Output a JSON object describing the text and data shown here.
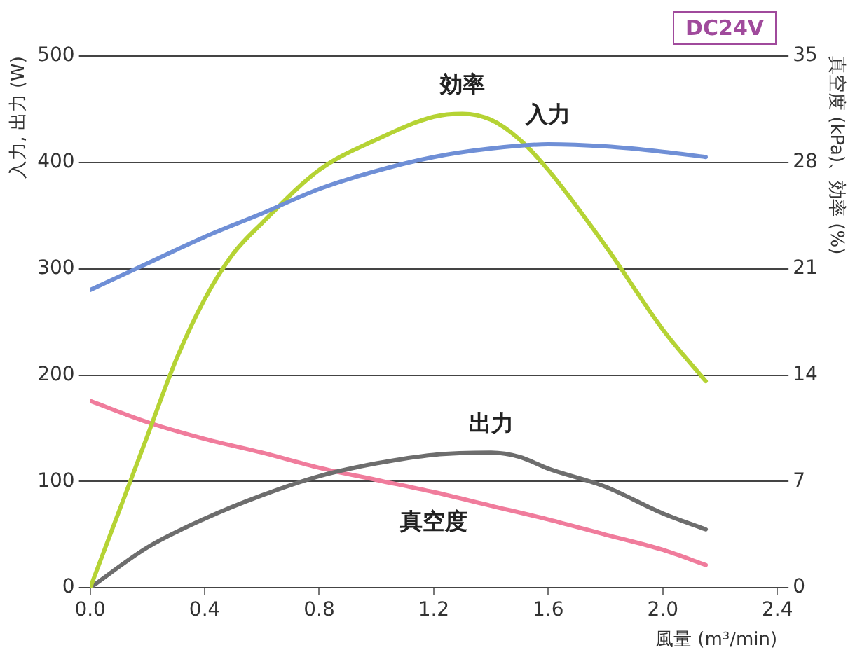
{
  "chart_data": {
    "type": "line",
    "xlabel": "風量 (m³/min)",
    "ylabel": "入力, 出力 (W)",
    "y2label": "真空度 (kPa)、効率 (%)",
    "x": [
      0,
      0.2,
      0.4,
      0.6,
      0.8,
      1.0,
      1.2,
      1.4,
      1.6,
      1.8,
      2.0,
      2.15
    ],
    "series": [
      {
        "name": "入力",
        "color": "#6f8fd6",
        "values": [
          280,
          305,
          330,
          352,
          375,
          392,
          405,
          413,
          417,
          415,
          410,
          405
        ]
      },
      {
        "name": "効率",
        "color": "#b5d334",
        "axis": "y2",
        "x": [
          0,
          0.1,
          0.2,
          0.3,
          0.4,
          0.5,
          0.6,
          0.8,
          1.0,
          1.2,
          1.3,
          1.4,
          1.5,
          1.6,
          1.8,
          2.0,
          2.15
        ],
        "values": [
          0,
          5,
          10,
          15,
          19,
          22,
          24,
          27.5,
          29.5,
          31,
          31.2,
          30.8,
          29.5,
          27.5,
          22.5,
          17,
          13.6
        ]
      },
      {
        "name": "出力",
        "color": "#6d6d6d",
        "x": [
          0,
          0.2,
          0.4,
          0.6,
          0.8,
          1.0,
          1.2,
          1.4,
          1.5,
          1.6,
          1.8,
          2.0,
          2.15
        ],
        "values": [
          0,
          38,
          65,
          87,
          105,
          117,
          125,
          127,
          123,
          112,
          95,
          70,
          55
        ]
      },
      {
        "name": "真空度",
        "color": "#f07c9c",
        "axis": "y2",
        "x": [
          0,
          0.2,
          0.4,
          0.6,
          0.8,
          1.0,
          1.2,
          1.4,
          1.6,
          1.8,
          2.0,
          2.15
        ],
        "values": [
          12.3,
          10.9,
          9.8,
          8.9,
          7.9,
          7.1,
          6.3,
          5.4,
          4.5,
          3.5,
          2.5,
          1.5
        ]
      }
    ],
    "xlim": [
      0,
      2.4
    ],
    "xticks": [
      {
        "value": 0,
        "label": "0.0"
      },
      0.4,
      0.8,
      1.2,
      1.6,
      {
        "value": 2.0,
        "label": "2.0"
      },
      2.4
    ],
    "ylim": [
      0,
      500
    ],
    "yticks": [
      0,
      100,
      200,
      300,
      400,
      500
    ],
    "y2lim": [
      0,
      35
    ],
    "y2ticks": [
      0,
      7,
      14,
      21,
      28,
      35
    ],
    "grid": "y",
    "marker": "none",
    "line_style": "solid",
    "legend": false,
    "annotations": [
      "DC24V"
    ]
  }
}
